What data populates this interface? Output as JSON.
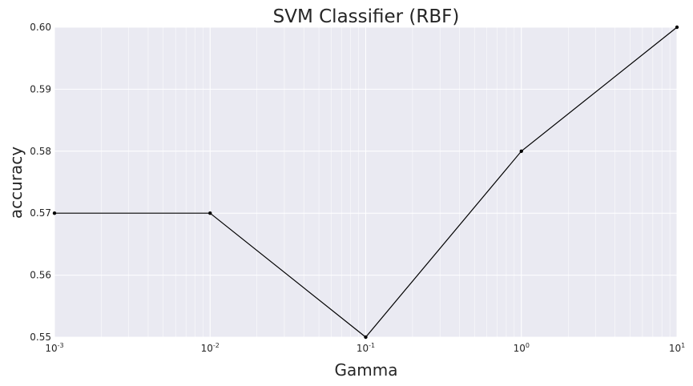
{
  "chart_data": {
    "type": "line",
    "title": "SVM Classifier (RBF)",
    "xlabel": "Gamma",
    "ylabel": "accuracy",
    "xscale": "log",
    "xlim": [
      0.001,
      10
    ],
    "ylim": [
      0.55,
      0.6
    ],
    "grid": true,
    "x": [
      0.001,
      0.01,
      0.1,
      1,
      10
    ],
    "y": [
      0.57,
      0.57,
      0.55,
      0.58,
      0.6
    ],
    "x_ticks": [
      {
        "base": "10",
        "exp": "-3"
      },
      {
        "base": "10",
        "exp": "-2"
      },
      {
        "base": "10",
        "exp": "-1"
      },
      {
        "base": "10",
        "exp": "0"
      },
      {
        "base": "10",
        "exp": "1"
      }
    ],
    "y_ticks": [
      "0.55",
      "0.56",
      "0.57",
      "0.58",
      "0.59",
      "0.60"
    ],
    "colors": {
      "plot_background": "#EAEAF2",
      "grid": "#ffffff",
      "line": "#000000"
    }
  }
}
